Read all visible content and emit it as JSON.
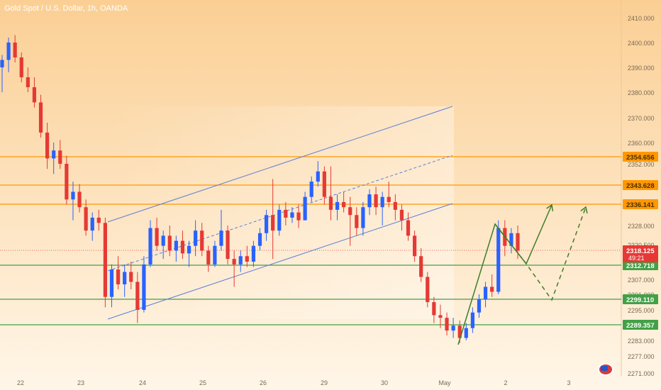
{
  "header": {
    "title": "Gold Spot / U.S. Dollar, 1h, OANDA"
  },
  "icons": {
    "currency": "us-flag-icon"
  },
  "colors": {
    "bullish": "#2962ff",
    "bearish": "#e53935",
    "resistance": "#ff9800",
    "support": "#43a047",
    "channel": "#5b7fd6",
    "projection": "#3f7d2b",
    "price_badge": "#e53935"
  },
  "chart_data": {
    "type": "candlestick",
    "y_axis_ticks": [
      "2410.000",
      "2400.000",
      "2390.000",
      "2380.000",
      "2370.000",
      "2360.000",
      "2352.000",
      "2328.000",
      "2320.500",
      "2307.000",
      "2301.000",
      "2295.000",
      "2283.000",
      "2277.000",
      "2271.000"
    ],
    "x_axis_ticks": [
      "22",
      "23",
      "24",
      "25",
      "26",
      "29",
      "30",
      "May",
      "2",
      "3"
    ],
    "price_labels": [
      {
        "name": "resistance-1",
        "value": "2354.656",
        "kind": "resistance"
      },
      {
        "name": "resistance-2",
        "value": "2343.628",
        "kind": "resistance"
      },
      {
        "name": "resistance-3",
        "value": "2336.141",
        "kind": "resistance"
      },
      {
        "name": "support-1",
        "value": "2312.718",
        "kind": "support"
      },
      {
        "name": "support-2",
        "value": "2299.110",
        "kind": "support"
      },
      {
        "name": "support-3",
        "value": "2289.357",
        "kind": "support"
      }
    ],
    "current_price": {
      "value": "2318.125",
      "countdown": "49:21"
    },
    "series": [
      {
        "values": [
          {
            "o": 2390,
            "h": 2395,
            "l": 2380,
            "c": 2393
          },
          {
            "o": 2393,
            "h": 2402,
            "l": 2388,
            "c": 2400
          },
          {
            "o": 2400,
            "h": 2403,
            "l": 2392,
            "c": 2394
          },
          {
            "o": 2394,
            "h": 2396,
            "l": 2384,
            "c": 2386
          },
          {
            "o": 2386,
            "h": 2390,
            "l": 2380,
            "c": 2382
          },
          {
            "o": 2382,
            "h": 2386,
            "l": 2374,
            "c": 2376
          },
          {
            "o": 2376,
            "h": 2379,
            "l": 2362,
            "c": 2364
          },
          {
            "o": 2364,
            "h": 2368,
            "l": 2350,
            "c": 2354
          },
          {
            "o": 2354,
            "h": 2360,
            "l": 2348,
            "c": 2357
          },
          {
            "o": 2357,
            "h": 2361,
            "l": 2350,
            "c": 2352
          },
          {
            "o": 2352,
            "h": 2355,
            "l": 2336,
            "c": 2338
          },
          {
            "o": 2338,
            "h": 2345,
            "l": 2330,
            "c": 2341
          },
          {
            "o": 2341,
            "h": 2344,
            "l": 2333,
            "c": 2335
          },
          {
            "o": 2335,
            "h": 2338,
            "l": 2324,
            "c": 2326
          },
          {
            "o": 2326,
            "h": 2333,
            "l": 2322,
            "c": 2331
          },
          {
            "o": 2331,
            "h": 2334,
            "l": 2326,
            "c": 2329
          },
          {
            "o": 2329,
            "h": 2331,
            "l": 2296,
            "c": 2300
          },
          {
            "o": 2300,
            "h": 2313,
            "l": 2296,
            "c": 2311
          },
          {
            "o": 2311,
            "h": 2316,
            "l": 2303,
            "c": 2305
          },
          {
            "o": 2305,
            "h": 2313,
            "l": 2300,
            "c": 2310
          },
          {
            "o": 2310,
            "h": 2314,
            "l": 2303,
            "c": 2306
          },
          {
            "o": 2306,
            "h": 2310,
            "l": 2290,
            "c": 2295
          },
          {
            "o": 2295,
            "h": 2316,
            "l": 2294,
            "c": 2313
          },
          {
            "o": 2313,
            "h": 2330,
            "l": 2312,
            "c": 2327
          },
          {
            "o": 2327,
            "h": 2331,
            "l": 2318,
            "c": 2320
          },
          {
            "o": 2320,
            "h": 2326,
            "l": 2315,
            "c": 2324
          },
          {
            "o": 2324,
            "h": 2328,
            "l": 2316,
            "c": 2318
          },
          {
            "o": 2318,
            "h": 2324,
            "l": 2314,
            "c": 2322
          },
          {
            "o": 2322,
            "h": 2326,
            "l": 2315,
            "c": 2317
          },
          {
            "o": 2317,
            "h": 2322,
            "l": 2312,
            "c": 2320
          },
          {
            "o": 2320,
            "h": 2330,
            "l": 2316,
            "c": 2326
          },
          {
            "o": 2326,
            "h": 2329,
            "l": 2316,
            "c": 2318
          },
          {
            "o": 2318,
            "h": 2320,
            "l": 2310,
            "c": 2313
          },
          {
            "o": 2313,
            "h": 2322,
            "l": 2312,
            "c": 2320
          },
          {
            "o": 2320,
            "h": 2334,
            "l": 2318,
            "c": 2326
          },
          {
            "o": 2326,
            "h": 2328,
            "l": 2313,
            "c": 2315
          },
          {
            "o": 2315,
            "h": 2318,
            "l": 2304,
            "c": 2313
          },
          {
            "o": 2313,
            "h": 2318,
            "l": 2310,
            "c": 2316
          },
          {
            "o": 2316,
            "h": 2320,
            "l": 2312,
            "c": 2314
          },
          {
            "o": 2314,
            "h": 2322,
            "l": 2312,
            "c": 2320
          },
          {
            "o": 2320,
            "h": 2327,
            "l": 2318,
            "c": 2325
          },
          {
            "o": 2325,
            "h": 2334,
            "l": 2322,
            "c": 2332
          },
          {
            "o": 2332,
            "h": 2346,
            "l": 2315,
            "c": 2326
          },
          {
            "o": 2326,
            "h": 2336,
            "l": 2324,
            "c": 2334
          },
          {
            "o": 2334,
            "h": 2337,
            "l": 2328,
            "c": 2331
          },
          {
            "o": 2331,
            "h": 2335,
            "l": 2329,
            "c": 2333
          },
          {
            "o": 2333,
            "h": 2336,
            "l": 2327,
            "c": 2330
          },
          {
            "o": 2330,
            "h": 2341,
            "l": 2330,
            "c": 2339
          },
          {
            "o": 2339,
            "h": 2347,
            "l": 2337,
            "c": 2345
          },
          {
            "o": 2345,
            "h": 2353,
            "l": 2343,
            "c": 2349
          },
          {
            "o": 2349,
            "h": 2351,
            "l": 2336,
            "c": 2339
          },
          {
            "o": 2339,
            "h": 2351,
            "l": 2330,
            "c": 2334
          },
          {
            "o": 2334,
            "h": 2340,
            "l": 2330,
            "c": 2337
          },
          {
            "o": 2337,
            "h": 2341,
            "l": 2333,
            "c": 2335
          },
          {
            "o": 2335,
            "h": 2339,
            "l": 2320,
            "c": 2332
          },
          {
            "o": 2332,
            "h": 2335,
            "l": 2324,
            "c": 2327
          },
          {
            "o": 2327,
            "h": 2337,
            "l": 2324,
            "c": 2335
          },
          {
            "o": 2335,
            "h": 2342,
            "l": 2332,
            "c": 2340
          },
          {
            "o": 2340,
            "h": 2343,
            "l": 2332,
            "c": 2335
          },
          {
            "o": 2335,
            "h": 2341,
            "l": 2328,
            "c": 2339
          },
          {
            "o": 2339,
            "h": 2345,
            "l": 2335,
            "c": 2337
          },
          {
            "o": 2337,
            "h": 2340,
            "l": 2330,
            "c": 2334
          },
          {
            "o": 2334,
            "h": 2336,
            "l": 2326,
            "c": 2330
          },
          {
            "o": 2330,
            "h": 2333,
            "l": 2322,
            "c": 2324
          },
          {
            "o": 2324,
            "h": 2326,
            "l": 2314,
            "c": 2316
          },
          {
            "o": 2316,
            "h": 2319,
            "l": 2306,
            "c": 2308
          },
          {
            "o": 2308,
            "h": 2310,
            "l": 2296,
            "c": 2298
          },
          {
            "o": 2298,
            "h": 2300,
            "l": 2290,
            "c": 2293
          },
          {
            "o": 2293,
            "h": 2297,
            "l": 2288,
            "c": 2292
          },
          {
            "o": 2292,
            "h": 2294,
            "l": 2285,
            "c": 2287
          },
          {
            "o": 2287,
            "h": 2292,
            "l": 2284,
            "c": 2289
          },
          {
            "o": 2289,
            "h": 2291,
            "l": 2282,
            "c": 2284
          },
          {
            "o": 2284,
            "h": 2290,
            "l": 2283,
            "c": 2288
          },
          {
            "o": 2288,
            "h": 2296,
            "l": 2286,
            "c": 2294
          },
          {
            "o": 2294,
            "h": 2301,
            "l": 2292,
            "c": 2299
          },
          {
            "o": 2299,
            "h": 2306,
            "l": 2296,
            "c": 2304
          },
          {
            "o": 2304,
            "h": 2309,
            "l": 2300,
            "c": 2302
          },
          {
            "o": 2302,
            "h": 2330,
            "l": 2301,
            "c": 2327
          },
          {
            "o": 2327,
            "h": 2330,
            "l": 2316,
            "c": 2320
          },
          {
            "o": 2320,
            "h": 2327,
            "l": 2317,
            "c": 2325
          },
          {
            "o": 2325,
            "h": 2328,
            "l": 2315,
            "c": 2318
          }
        ]
      }
    ],
    "channel": "ascending",
    "projection": "bullish scenario (solid) and alternate scenario (dashed)"
  }
}
